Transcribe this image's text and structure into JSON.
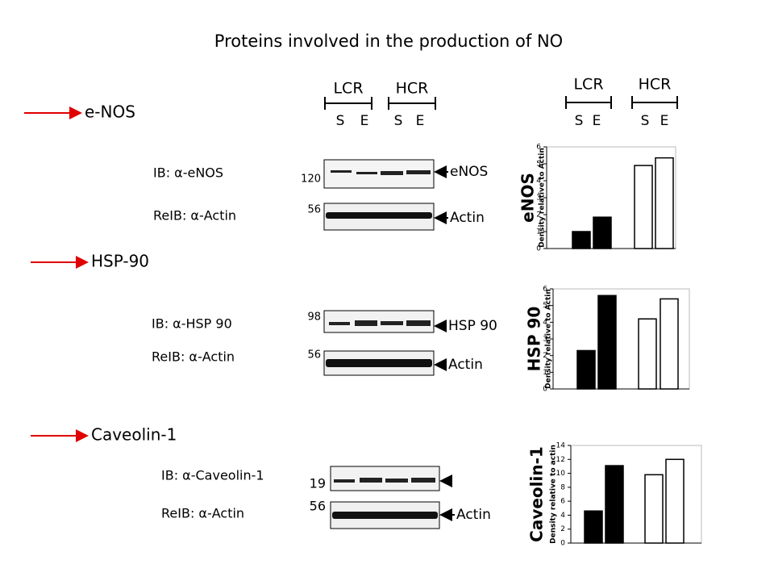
{
  "title": "Proteins involved in the production of NO",
  "blot_header": [
    {
      "name": "LCR",
      "lanes": [
        "S",
        "E"
      ]
    },
    {
      "name": "HCR",
      "lanes": [
        "S",
        "E"
      ]
    }
  ],
  "chart_header": [
    {
      "name": "LCR",
      "lanes": [
        "S",
        "E"
      ]
    },
    {
      "name": "HCR",
      "lanes": [
        "S",
        "E"
      ]
    }
  ],
  "panels": [
    {
      "label": "e-NOS",
      "ib": "IB: α-eNOS",
      "reib": "ReIB: α-Actin",
      "markers": [
        "120",
        "56"
      ],
      "bands": [
        "eNOS",
        "Actin"
      ]
    },
    {
      "label": "HSP-90",
      "ib": "IB: α-HSP 90",
      "reib": "ReIB: α-Actin",
      "markers": [
        "98",
        "56"
      ],
      "bands": [
        "HSP 90",
        "Actin"
      ]
    },
    {
      "label": "Caveolin-1",
      "ib": "IB: α-Caveolin-1",
      "reib": "ReIB: α-Actin",
      "markers": [
        "19",
        "56"
      ],
      "bands": [
        null,
        "Actin"
      ]
    }
  ],
  "chart_data": [
    {
      "type": "bar",
      "title": "eNOS",
      "y_label": "Density relative to Actin",
      "values": [
        1.0,
        1.85,
        4.9,
        5.35
      ],
      "colors": [
        "#000000",
        "#000000",
        "#ffffff",
        "#ffffff"
      ],
      "ylim": [
        0,
        6
      ],
      "yticks": [
        0,
        1,
        2,
        3,
        4,
        5,
        6
      ]
    },
    {
      "type": "bar",
      "title": "HSP 90",
      "y_label": "Density relative to Actin",
      "values": [
        2.3,
        5.6,
        4.2,
        5.4
      ],
      "colors": [
        "#000000",
        "#000000",
        "#ffffff",
        "#ffffff"
      ],
      "ylim": [
        0,
        6
      ],
      "yticks": [
        0,
        1,
        2,
        3,
        4,
        5,
        6
      ]
    },
    {
      "type": "bar",
      "title": "Caveolin-1",
      "y_label": "Density relative to actin",
      "values": [
        4.6,
        11.1,
        9.8,
        12.0
      ],
      "colors": [
        "#000000",
        "#000000",
        "#ffffff",
        "#ffffff"
      ],
      "ylim": [
        0,
        14
      ],
      "yticks": [
        0,
        2,
        4,
        6,
        8,
        10,
        12,
        14
      ]
    }
  ]
}
